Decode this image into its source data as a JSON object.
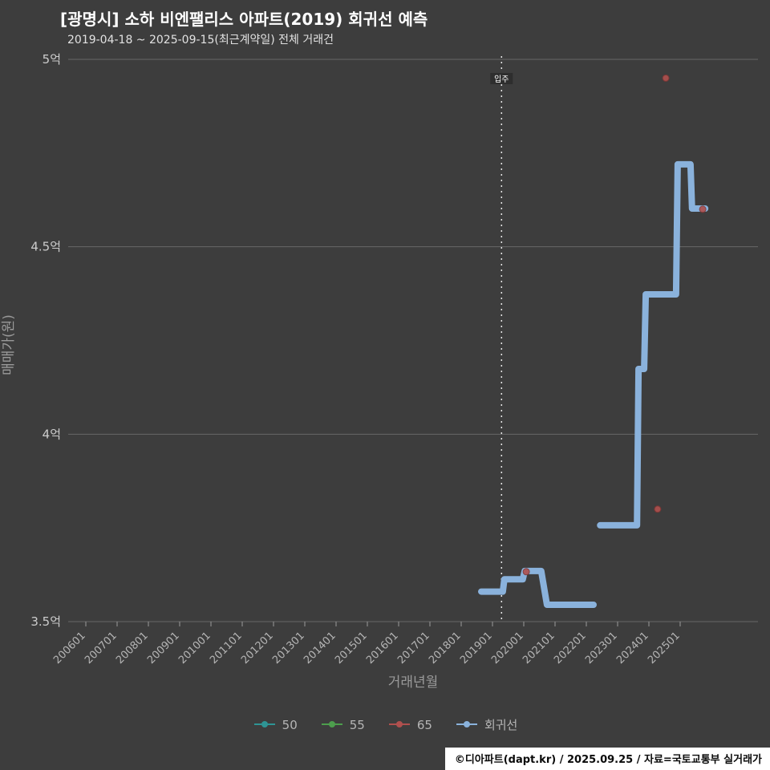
{
  "header": {
    "title": "[광명시] 소하 비엔팰리스 아파트(2019) 회귀선 예측",
    "subtitle": "2019-04-18 ~ 2025-09-15(최근계약일) 전체 거래건"
  },
  "footer": {
    "text": "©디아파트(dapt.kr) / 2025.09.25 / 자료=국토교통부 실거래가"
  },
  "colors": {
    "background": "#3d3d3d",
    "title_text": "#ffffff",
    "axis_text": "#b5b5b5",
    "gridline": "#8a8a8a",
    "regression_line": "#8ab2dc",
    "series_50": "#2e9494",
    "series_55": "#4d9e4d",
    "series_65": "#b0504e",
    "footer_bg": "#ffffff"
  },
  "chart_data": {
    "type": "line",
    "title": "[광명시] 소하 비엔팰리스 아파트(2019) 회귀선 예측",
    "subtitle": "2019-04-18 ~ 2025-09-15(최근계약일) 전체 거래건",
    "xlabel": "거래년월",
    "ylabel": "매매가(원)",
    "unit": "억원",
    "ylim": [
      3.5,
      5.0
    ],
    "grid": true,
    "legend_position": "bottom",
    "y_ticks": [
      {
        "label": "5억",
        "value": 5.0
      },
      {
        "label": "4.5억",
        "value": 4.5
      },
      {
        "label": "4억",
        "value": 4.0
      },
      {
        "label": "3.5억",
        "value": 3.5
      }
    ],
    "x_ticks": [
      "200601",
      "200701",
      "200801",
      "200901",
      "201001",
      "201101",
      "201201",
      "201301",
      "201401",
      "201501",
      "201601",
      "201701",
      "201801",
      "201901",
      "202001",
      "202101",
      "202201",
      "202301",
      "202401",
      "202501"
    ],
    "vline": {
      "x": 2019.29,
      "label": "입주"
    },
    "series": [
      {
        "name": "50",
        "type": "scatter",
        "color": "#2e9494",
        "points": []
      },
      {
        "name": "55",
        "type": "scatter",
        "color": "#4d9e4d",
        "points": []
      },
      {
        "name": "65",
        "type": "scatter",
        "color": "#b0504e",
        "points": [
          {
            "x": 2020.08,
            "y": 3.633
          },
          {
            "x": 2024.28,
            "y": 3.8
          },
          {
            "x": 2024.54,
            "y": 4.95
          },
          {
            "x": 2025.72,
            "y": 4.6
          }
        ]
      },
      {
        "name": "회귀선",
        "type": "line",
        "color": "#8ab2dc",
        "width": 8,
        "segments": [
          [
            {
              "x": 2018.64,
              "y": 3.58
            },
            {
              "x": 2019.33,
              "y": 3.58
            },
            {
              "x": 2019.38,
              "y": 3.613
            },
            {
              "x": 2019.97,
              "y": 3.613
            },
            {
              "x": 2020.03,
              "y": 3.635
            },
            {
              "x": 2020.56,
              "y": 3.635
            },
            {
              "x": 2020.74,
              "y": 3.545
            },
            {
              "x": 2022.23,
              "y": 3.545
            }
          ],
          [
            {
              "x": 2022.44,
              "y": 3.757
            },
            {
              "x": 2023.62,
              "y": 3.757
            },
            {
              "x": 2023.67,
              "y": 4.174
            },
            {
              "x": 2023.85,
              "y": 4.174
            },
            {
              "x": 2023.9,
              "y": 4.373
            },
            {
              "x": 2024.87,
              "y": 4.373
            },
            {
              "x": 2024.92,
              "y": 4.72
            },
            {
              "x": 2025.33,
              "y": 4.72
            },
            {
              "x": 2025.38,
              "y": 4.602
            },
            {
              "x": 2025.8,
              "y": 4.602
            }
          ]
        ]
      }
    ]
  }
}
